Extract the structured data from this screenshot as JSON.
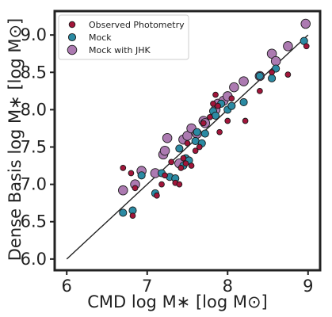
{
  "colors": {
    "observed": "#a2153a",
    "mock": "#2b8aa3",
    "mock_jhk": "#ac7ab1",
    "one_to_one_line": "#222222",
    "marker_edge": "#1a1a1a"
  },
  "chart_data": {
    "type": "scatter",
    "xlabel": "CMD log M∗ [log M⊙]",
    "ylabel": "Dense Basis log M∗ [log M⊙]",
    "xlim": [
      5.85,
      9.15
    ],
    "ylim": [
      5.85,
      9.32
    ],
    "x_ticks": [
      "6",
      "7",
      "8",
      "9"
    ],
    "x_tick_values": [
      6,
      7,
      8,
      9
    ],
    "y_ticks": [
      "6.0",
      "6.5",
      "7.0",
      "7.5",
      "8.0",
      "8.5",
      "9.0"
    ],
    "y_tick_values": [
      6.0,
      6.5,
      7.0,
      7.5,
      8.0,
      8.5,
      9.0
    ],
    "grid": false,
    "legend_position": "top-left",
    "one_to_one_line": [
      [
        6.0,
        6.0
      ],
      [
        9.0,
        9.0
      ]
    ],
    "series": [
      {
        "name": "Mock with JHK",
        "color_key": "mock_jhk",
        "marker_size": "large",
        "points": [
          [
            6.7,
            6.92
          ],
          [
            6.85,
            7.0
          ],
          [
            6.93,
            7.18
          ],
          [
            7.1,
            7.15
          ],
          [
            7.2,
            7.4
          ],
          [
            7.22,
            7.45
          ],
          [
            7.25,
            7.62
          ],
          [
            7.4,
            7.28
          ],
          [
            7.45,
            7.6
          ],
          [
            7.5,
            7.65
          ],
          [
            7.55,
            7.75
          ],
          [
            7.62,
            7.68
          ],
          [
            7.7,
            7.85
          ],
          [
            7.72,
            7.82
          ],
          [
            7.85,
            8.0
          ],
          [
            7.88,
            8.08
          ],
          [
            7.95,
            8.12
          ],
          [
            8.0,
            8.18
          ],
          [
            8.08,
            8.3
          ],
          [
            8.2,
            8.38
          ],
          [
            8.4,
            8.45
          ],
          [
            8.55,
            8.75
          ],
          [
            8.6,
            8.65
          ],
          [
            8.75,
            8.85
          ],
          [
            8.97,
            9.15
          ]
        ]
      },
      {
        "name": "Mock",
        "color_key": "mock",
        "marker_size": "medium",
        "points": [
          [
            6.7,
            6.62
          ],
          [
            6.82,
            6.65
          ],
          [
            6.93,
            7.12
          ],
          [
            7.1,
            6.88
          ],
          [
            7.18,
            7.15
          ],
          [
            7.28,
            7.1
          ],
          [
            7.35,
            7.08
          ],
          [
            7.4,
            7.48
          ],
          [
            7.45,
            7.25
          ],
          [
            7.48,
            7.35
          ],
          [
            7.52,
            7.32
          ],
          [
            7.6,
            7.58
          ],
          [
            7.62,
            7.7
          ],
          [
            7.68,
            7.55
          ],
          [
            7.72,
            7.68
          ],
          [
            7.82,
            7.98
          ],
          [
            7.85,
            7.92
          ],
          [
            7.92,
            8.08
          ],
          [
            8.0,
            8.0
          ],
          [
            8.05,
            8.05
          ],
          [
            8.2,
            8.1
          ],
          [
            8.4,
            8.45
          ],
          [
            8.55,
            8.42
          ],
          [
            8.6,
            8.55
          ],
          [
            8.95,
            8.92
          ]
        ]
      },
      {
        "name": "Observed Photometry",
        "color_key": "observed",
        "marker_size": "small",
        "points": [
          [
            6.7,
            7.22
          ],
          [
            6.8,
            7.15
          ],
          [
            6.82,
            6.58
          ],
          [
            6.85,
            6.95
          ],
          [
            7.12,
            6.85
          ],
          [
            7.18,
            7.0
          ],
          [
            7.22,
            7.12
          ],
          [
            7.3,
            7.3
          ],
          [
            7.35,
            7.02
          ],
          [
            7.4,
            7.0
          ],
          [
            7.42,
            7.22
          ],
          [
            7.45,
            7.35
          ],
          [
            7.48,
            7.28
          ],
          [
            7.5,
            7.55
          ],
          [
            7.55,
            7.25
          ],
          [
            7.6,
            7.45
          ],
          [
            7.65,
            7.5
          ],
          [
            7.7,
            7.82
          ],
          [
            7.78,
            7.9
          ],
          [
            7.82,
            8.08
          ],
          [
            7.85,
            8.2
          ],
          [
            7.88,
            8.05
          ],
          [
            7.9,
            7.7
          ],
          [
            8.0,
            7.85
          ],
          [
            8.05,
            8.15
          ],
          [
            8.22,
            7.85
          ],
          [
            8.4,
            8.25
          ],
          [
            8.55,
            8.5
          ],
          [
            8.75,
            8.47
          ],
          [
            8.98,
            8.85
          ]
        ]
      }
    ]
  }
}
